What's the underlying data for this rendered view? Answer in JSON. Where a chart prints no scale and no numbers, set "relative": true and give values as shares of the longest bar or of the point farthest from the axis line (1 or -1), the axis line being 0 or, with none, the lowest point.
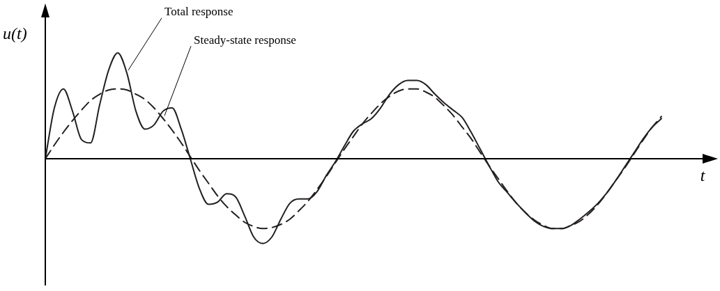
{
  "chart_data": {
    "type": "line",
    "relative": true,
    "xlabel": "t",
    "ylabel": "u(t)",
    "legend": false,
    "marker": "none",
    "categories": [
      null,
      null,
      null,
      null,
      null,
      null,
      null,
      null,
      null,
      null,
      null,
      null,
      null,
      null,
      null,
      null,
      null,
      null,
      null,
      null,
      null,
      null,
      null,
      null,
      null,
      null,
      null,
      null,
      null,
      null,
      null,
      null,
      null,
      null,
      null,
      null,
      null,
      null,
      null,
      null,
      null,
      null,
      null,
      null,
      null,
      null,
      null,
      null,
      null,
      null,
      null,
      null,
      null,
      null,
      null,
      null,
      null,
      null,
      null,
      null,
      null,
      null,
      null,
      null,
      null,
      null,
      null,
      null,
      null
    ],
    "series": [
      {
        "name": "Total response",
        "color": "#231f20",
        "line_style": "solid",
        "values": [
          0,
          0.48,
          0.66,
          0.45,
          0.18,
          0.15,
          0.51,
          0.84,
          1.0,
          0.81,
          0.45,
          0.28,
          0.32,
          0.45,
          0.48,
          0.28,
          0,
          -0.28,
          -0.43,
          -0.41,
          -0.33,
          -0.36,
          -0.54,
          -0.74,
          -0.8,
          -0.74,
          -0.57,
          -0.42,
          -0.38,
          -0.38,
          -0.31,
          -0.16,
          -0.03,
          0.12,
          0.26,
          0.33,
          0.38,
          0.48,
          0.61,
          0.7,
          0.74,
          0.74,
          0.7,
          0.61,
          0.53,
          0.46,
          0.39,
          0.25,
          0.09,
          -0.07,
          -0.22,
          -0.32,
          -0.42,
          -0.51,
          -0.59,
          -0.64,
          -0.66,
          -0.66,
          -0.63,
          -0.57,
          -0.5,
          -0.42,
          -0.32,
          -0.2,
          -0.07,
          0.06,
          0.19,
          0.3,
          0.38
        ]
      },
      {
        "name": "Steady-state response",
        "color": "#231f20",
        "line_style": "dashed",
        "values": [
          0,
          0.13,
          0.25,
          0.36,
          0.46,
          0.55,
          0.61,
          0.65,
          0.66,
          0.65,
          0.61,
          0.56,
          0.48,
          0.38,
          0.27,
          0.15,
          0.02,
          -0.11,
          -0.23,
          -0.35,
          -0.45,
          -0.53,
          -0.6,
          -0.64,
          -0.66,
          -0.65,
          -0.62,
          -0.57,
          -0.49,
          -0.4,
          -0.29,
          -0.17,
          -0.04,
          0.09,
          0.21,
          0.33,
          0.43,
          0.52,
          0.59,
          0.64,
          0.66,
          0.66,
          0.63,
          0.58,
          0.5,
          0.41,
          0.3,
          0.19,
          0.06,
          -0.07,
          -0.19,
          -0.31,
          -0.42,
          -0.51,
          -0.58,
          -0.63,
          -0.66,
          -0.66,
          -0.63,
          -0.59,
          -0.52,
          -0.43,
          -0.32,
          -0.2,
          -0.08,
          0.05,
          0.18,
          0.3,
          0.4
        ]
      }
    ]
  }
}
